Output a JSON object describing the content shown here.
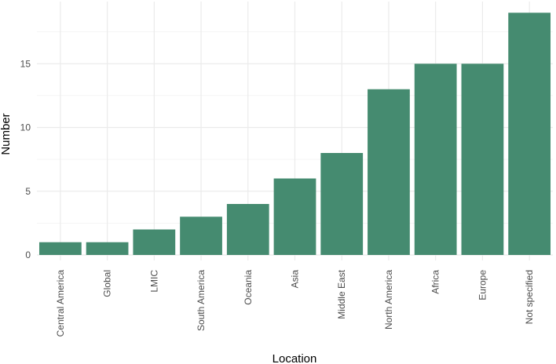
{
  "chart_data": {
    "type": "bar",
    "categories": [
      "Central America",
      "Global",
      "LMIC",
      "South America",
      "Oceania",
      "Asia",
      "Middle East",
      "North America",
      "Africa",
      "Europe",
      "Not specified"
    ],
    "values": [
      1,
      1,
      2,
      3,
      4,
      6,
      8,
      13,
      15,
      15,
      19
    ],
    "xlabel": "Location",
    "ylabel": "Number",
    "ylim": [
      0,
      19.9
    ],
    "yticks": [
      0,
      5,
      10,
      15
    ],
    "grid": true,
    "bar_color": "#458B70",
    "grid_color": "#EBEBEB"
  }
}
